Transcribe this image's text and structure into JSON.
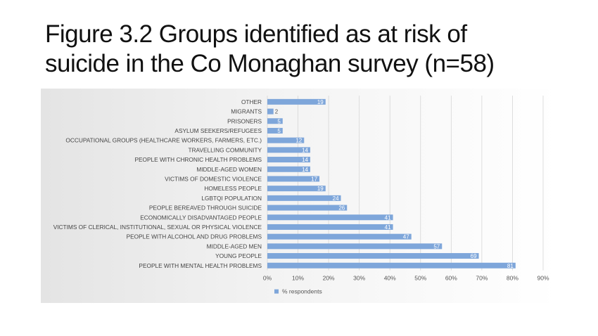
{
  "slide": {
    "title_line1": "Figure 3.2 Groups identified as at risk of",
    "title_line2": "suicide in the Co Monaghan survey (n=58)"
  },
  "chart_data": {
    "type": "bar",
    "orientation": "horizontal",
    "categories": [
      "OTHER",
      "MIGRANTS",
      "PRISONERS",
      "ASYLUM SEEKERS/REFUGEES",
      "OCCUPATIONAL GROUPS (HEALTHCARE WORKERS, FARMERS, ETC.)",
      "TRAVELLING COMMUNITY",
      "PEOPLE WITH CHRONIC HEALTH PROBLEMS",
      "MIDDLE-AGED WOMEN",
      "VICTIMS OF DOMESTIC VIOLENCE",
      "HOMELESS PEOPLE",
      "LGBTQI POPULATION",
      "PEOPLE BEREAVED THROUGH SUICIDE",
      "ECONOMICALLY DISADVANTAGED PEOPLE",
      "VICTIMS OF CLERICAL, INSTITUTIONAL, SEXUAL OR PHYSICAL VIOLENCE",
      "PEOPLE WITH ALCOHOL AND DRUG PROBLEMS",
      "MIDDLE-AGED MEN",
      "YOUNG PEOPLE",
      "PEOPLE WITH MENTAL HEALTH PROBLEMS"
    ],
    "series": [
      {
        "name": "% respondents",
        "values": [
          19,
          2,
          5,
          5,
          12,
          14,
          14,
          14,
          17,
          19,
          24,
          26,
          41,
          41,
          47,
          57,
          69,
          81
        ]
      }
    ],
    "xlim": [
      0,
      90
    ],
    "xticks": [
      "0%",
      "10%",
      "20%",
      "30%",
      "40%",
      "50%",
      "60%",
      "70%",
      "80%",
      "90%"
    ],
    "grid": "vertical",
    "legend": "bottom-left",
    "bar_color": "#7ea6da"
  }
}
